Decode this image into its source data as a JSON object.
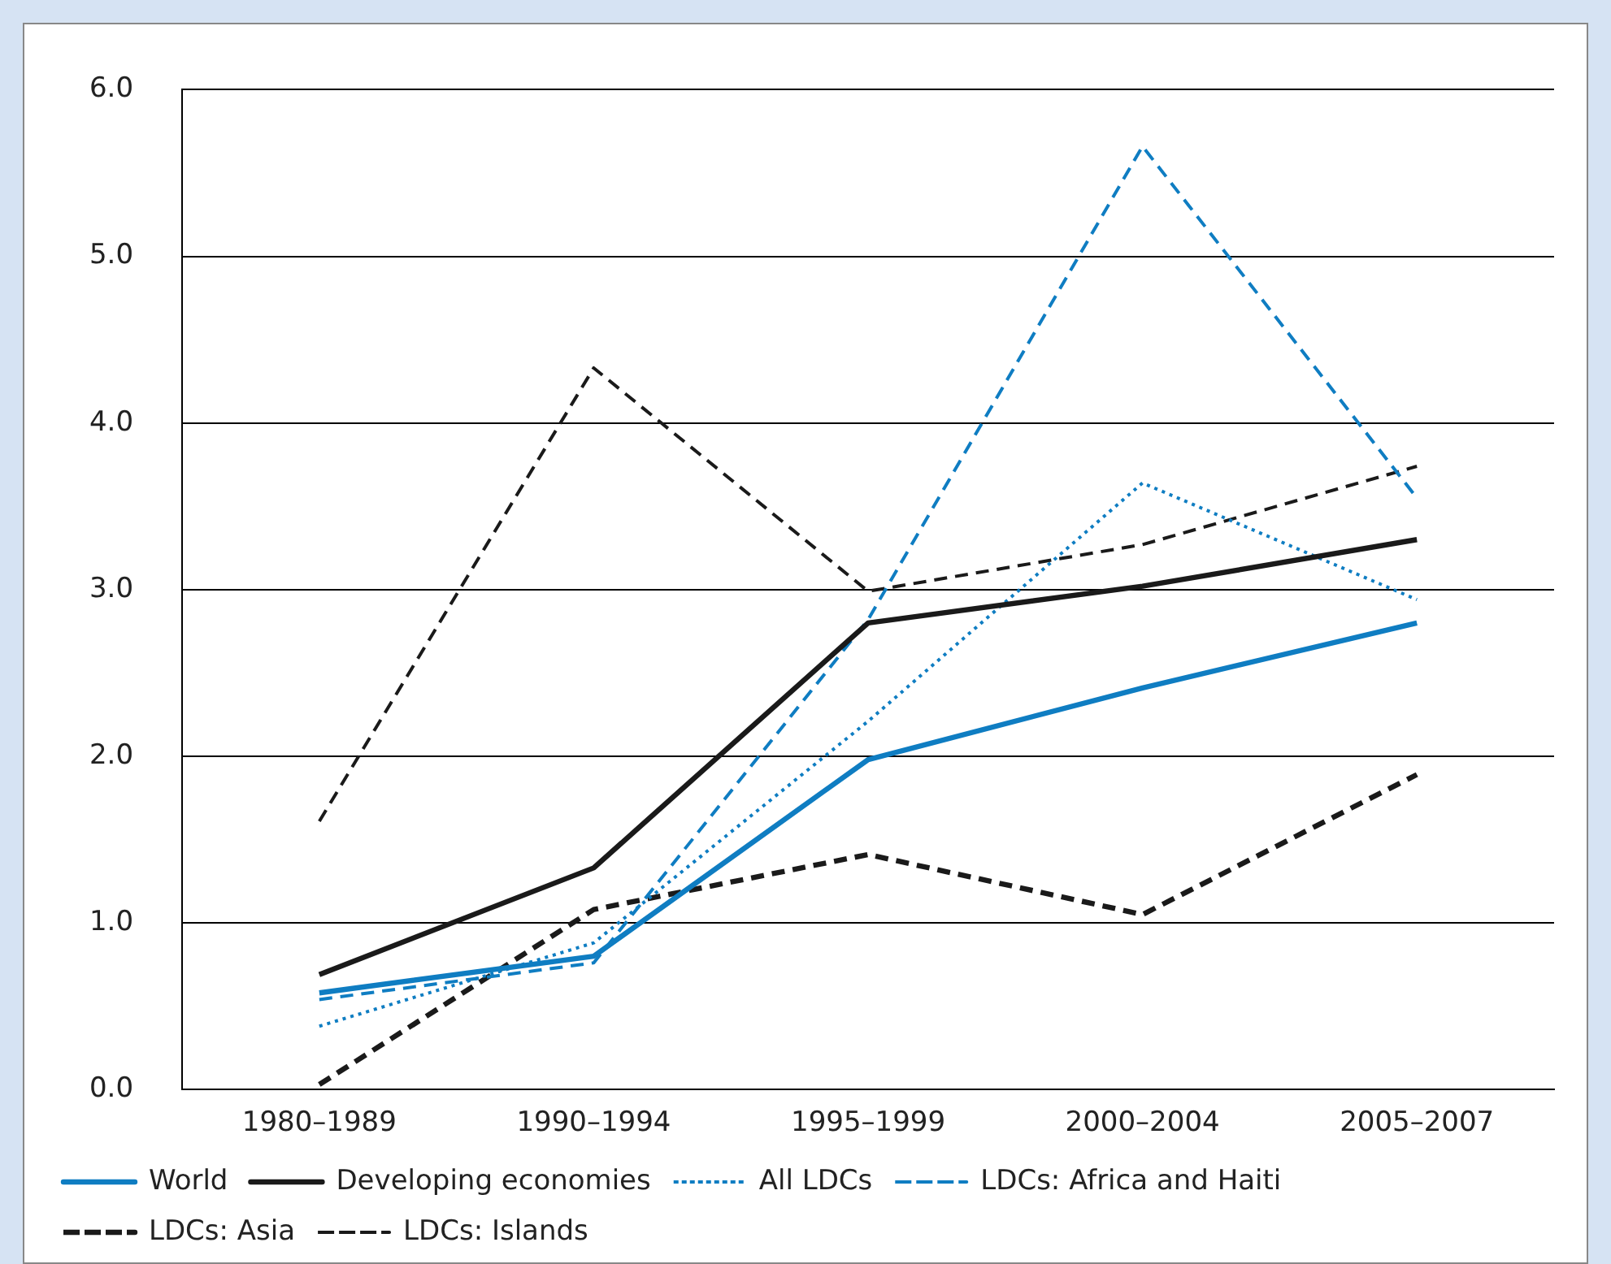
{
  "chart_data": {
    "type": "line",
    "categories": [
      "1980–1989",
      "1990–1994",
      "1995–1999",
      "2000–2004",
      "2005–2007"
    ],
    "ylim": [
      0,
      6
    ],
    "yticks": [
      {
        "value": 0,
        "label": "0.0"
      },
      {
        "value": 1,
        "label": "1.0"
      },
      {
        "value": 2,
        "label": "2.0"
      },
      {
        "value": 3,
        "label": "3.0"
      },
      {
        "value": 4,
        "label": "4.0"
      },
      {
        "value": 5,
        "label": "5.0"
      },
      {
        "value": 6,
        "label": "6.0"
      }
    ],
    "grid": "y",
    "legend": "bottom",
    "marker": "none",
    "series": [
      {
        "name": "World",
        "color": "#0f7dc2",
        "line_style": "solid",
        "values": [
          0.58,
          0.8,
          1.98,
          2.41,
          2.8
        ]
      },
      {
        "name": "Developing economies",
        "color": "#1a1a1a",
        "line_style": "solid",
        "values": [
          0.69,
          1.33,
          2.8,
          3.02,
          3.3
        ]
      },
      {
        "name": "All LDCs",
        "color": "#0f7dc2",
        "line_style": "dotted",
        "values": [
          0.38,
          0.88,
          2.21,
          3.64,
          2.94
        ]
      },
      {
        "name": "LDCs: Africa and Haiti",
        "color": "#0f7dc2",
        "line_style": "dashed",
        "values": [
          0.54,
          0.76,
          2.82,
          5.66,
          3.55
        ]
      },
      {
        "name": "LDCs: Asia",
        "color": "#1a1a1a",
        "line_style": "dashed",
        "values": [
          0.03,
          1.08,
          1.41,
          1.05,
          1.89
        ]
      },
      {
        "name": "LDCs: Islands",
        "color": "#1a1a1a",
        "line_style": "dashed",
        "values": [
          1.61,
          4.33,
          2.99,
          3.27,
          3.74
        ]
      }
    ]
  }
}
